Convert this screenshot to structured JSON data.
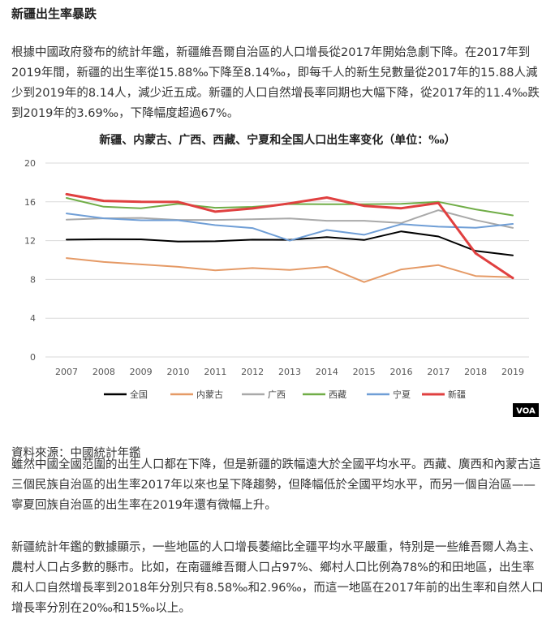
{
  "article": {
    "section_title": "新疆出生率暴跌",
    "paragraph1": "根據中國政府發布的統計年鑑，新疆維吾爾自治區的人口增長從2017年開始急劇下降。在2017年到2019年間，新疆的出生率從15.88‰下降至8.14‰，即每千人的新生兒數量從2017年的15.88人減少到2019年的8.14人，減少近五成。新疆的人口自然增長率同期也大幅下降，從2017年的11.4‰跌到2019年的3.69‰，下降幅度超過67%。",
    "source": "資料來源：中國統計年鑑",
    "paragraph2": "雖然中國全國范圍的出生人口都在下降，但是新疆的跌幅遠大於全國平均水平。西藏、廣西和內蒙古這三個民族自治區的出生率2017年以來也呈下降趨勢，但降幅低於全國平均水平，而另一個自治區——寧夏回族自治區的出生率在2019年還有微幅上升。",
    "paragraph3": "新疆統計年鑑的數據顯示，一些地區的人口增長萎縮比全疆平均水平嚴重，特別是一些維吾爾人為主、農村人口占多數的縣市。比如，在南疆維吾爾人口占97%、鄉村人口比例為78%的和田地區，出生率和人口自然增長率到2018年分別只有8.58‰和2.96‰，而這一地區在2017年前的出生率和自然人口增長率分別在20‰和15‰以上。"
  },
  "logo": {
    "text": "VOA"
  },
  "chart_data": {
    "type": "line",
    "title": "新疆、内蒙古、广西、西藏、宁夏和全国人口出生率变化（单位：‰）",
    "x": [
      "2007",
      "2008",
      "2009",
      "2010",
      "2011",
      "2012",
      "2013",
      "2014",
      "2015",
      "2016",
      "2017",
      "2018",
      "2019"
    ],
    "ylim": [
      0,
      20
    ],
    "yticks": [
      "0",
      "4",
      "8",
      "12",
      "16",
      "20"
    ],
    "grid": true,
    "legend_position": "bottom",
    "series": [
      {
        "name": "全国",
        "color": "#000000",
        "values": [
          12.1,
          12.14,
          12.13,
          11.9,
          11.93,
          12.1,
          12.08,
          12.37,
          12.07,
          12.95,
          12.43,
          10.94,
          10.48
        ]
      },
      {
        "name": "内蒙古",
        "color": "#e59a66",
        "values": [
          10.2,
          9.8,
          9.55,
          9.3,
          8.94,
          9.17,
          8.98,
          9.31,
          7.72,
          9.03,
          9.47,
          8.35,
          8.23
        ]
      },
      {
        "name": "广西",
        "color": "#a9a9a9",
        "values": [
          14.16,
          14.3,
          14.34,
          14.13,
          14.13,
          14.2,
          14.29,
          14.05,
          14.05,
          13.82,
          15.14,
          14.12,
          13.31
        ]
      },
      {
        "name": "西藏",
        "color": "#70ad47",
        "values": [
          16.4,
          15.5,
          15.33,
          15.8,
          15.39,
          15.48,
          15.77,
          15.76,
          15.75,
          15.79,
          16.0,
          15.22,
          14.6
        ]
      },
      {
        "name": "宁夏",
        "color": "#6f9ed6",
        "values": [
          14.8,
          14.3,
          14.1,
          14.1,
          13.6,
          13.3,
          12.0,
          13.1,
          12.6,
          13.7,
          13.44,
          13.32,
          13.72
        ]
      },
      {
        "name": "新疆",
        "color": "#e04040",
        "values": [
          16.79,
          16.1,
          16.0,
          15.99,
          14.99,
          15.32,
          15.84,
          16.44,
          15.59,
          15.34,
          15.88,
          10.69,
          8.14
        ]
      }
    ]
  }
}
